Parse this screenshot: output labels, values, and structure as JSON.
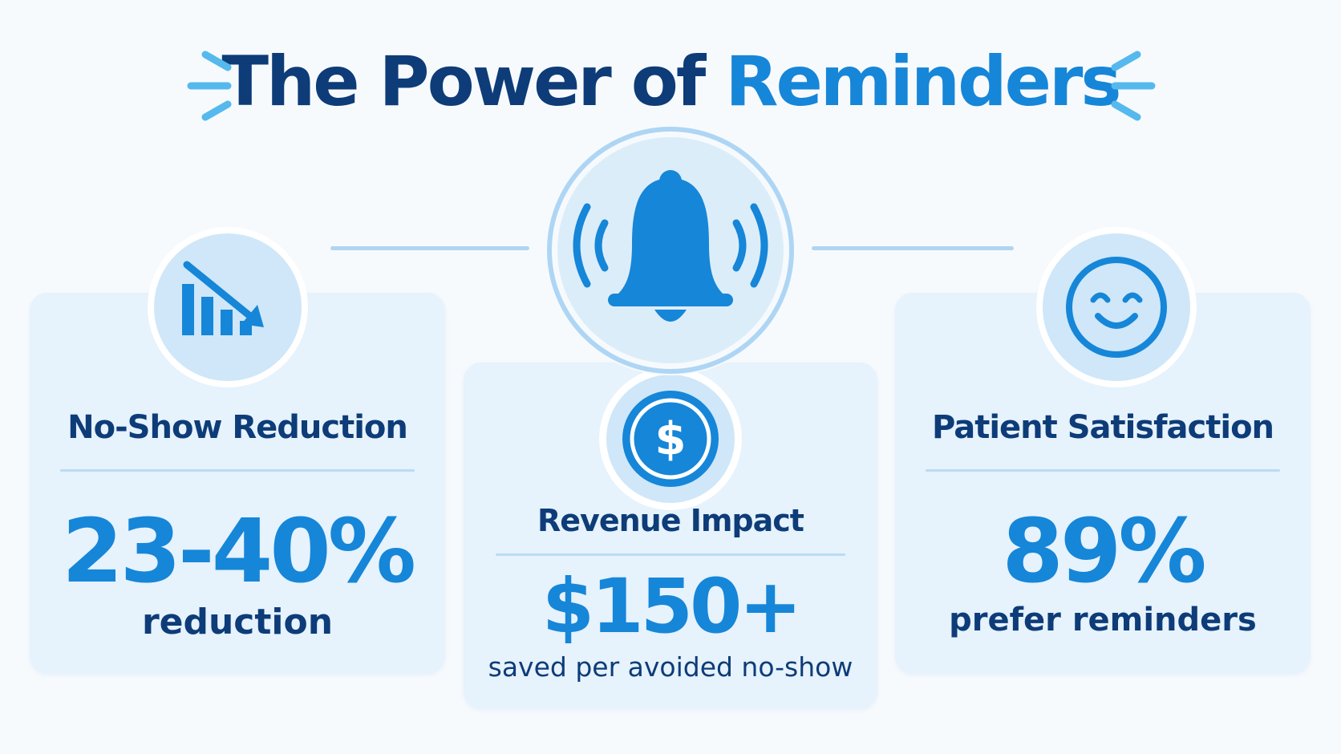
{
  "title": {
    "main": "The Power of",
    "accent": "Reminders"
  },
  "cards": [
    {
      "title": "No-Show Reduction",
      "value": "23-40%",
      "caption": "reduction",
      "icon": "trend-down-chart-icon"
    },
    {
      "title": "Revenue Impact",
      "value": "$150+",
      "caption": "saved per avoided no-show",
      "icon": "dollar-coin-icon"
    },
    {
      "title": "Patient Satisfaction",
      "value": "89%",
      "caption": "prefer reminders",
      "icon": "smiley-face-icon"
    }
  ],
  "center_icon": "ringing-bell-icon",
  "colors": {
    "navy": "#0d3c78",
    "accent_blue": "#1686d8",
    "card_bg": "#e6f2fc",
    "icon_circle": "#cfe7f8",
    "connector": "#aed6f4"
  }
}
